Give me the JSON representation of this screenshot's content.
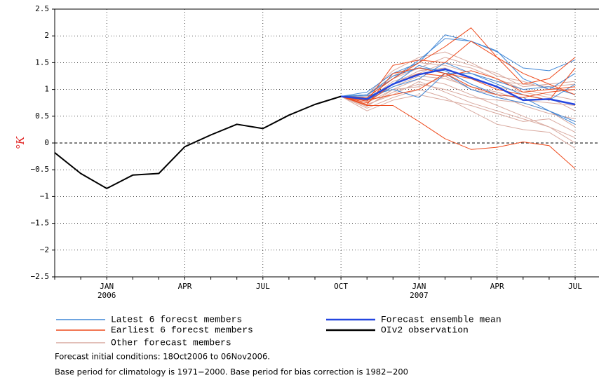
{
  "chart_data": {
    "type": "line",
    "ylabel": "°K",
    "categories": [
      null,
      null,
      "JAN 2006",
      null,
      null,
      "APR",
      null,
      null,
      "JUL",
      null,
      null,
      "OCT",
      null,
      null,
      "JAN 2007",
      null,
      null,
      "APR",
      null,
      null,
      "JUL"
    ],
    "ylim": [
      -2.5,
      2.5
    ],
    "yticks": [
      {
        "value": -2.5,
        "label": "−2.5"
      },
      {
        "value": -2,
        "label": "−2"
      },
      {
        "value": -1.5,
        "label": "−1.5"
      },
      {
        "value": -1,
        "label": "−1"
      },
      {
        "value": -0.5,
        "label": "−0.5"
      },
      0,
      0.5,
      1,
      1.5,
      2,
      2.5
    ],
    "grid": true,
    "series": [
      {
        "name": "Latest 6 forecst members",
        "color": "#3f86d6",
        "members": [
          [
            null,
            null,
            null,
            null,
            null,
            null,
            null,
            null,
            null,
            null,
            null,
            0.87,
            0.95,
            1.3,
            1.5,
            2.02,
            1.9,
            1.7,
            1.4,
            1.35,
            1.55
          ],
          [
            null,
            null,
            null,
            null,
            null,
            null,
            null,
            null,
            null,
            null,
            null,
            0.87,
            0.9,
            1.2,
            1.55,
            1.95,
            1.9,
            1.72,
            1.2,
            1.0,
            1.3
          ],
          [
            null,
            null,
            null,
            null,
            null,
            null,
            null,
            null,
            null,
            null,
            null,
            0.87,
            0.85,
            1.1,
            1.45,
            1.3,
            1.0,
            0.85,
            0.75,
            0.6,
            0.4
          ],
          [
            null,
            null,
            null,
            null,
            null,
            null,
            null,
            null,
            null,
            null,
            null,
            0.87,
            0.8,
            1.05,
            1.2,
            1.5,
            1.3,
            1.1,
            0.9,
            0.8,
            1.1
          ],
          [
            null,
            null,
            null,
            null,
            null,
            null,
            null,
            null,
            null,
            null,
            null,
            0.87,
            0.9,
            1.25,
            1.4,
            1.35,
            1.1,
            0.9,
            0.85,
            0.6,
            0.35
          ],
          [
            null,
            null,
            null,
            null,
            null,
            null,
            null,
            null,
            null,
            null,
            null,
            0.87,
            0.88,
            1.0,
            0.85,
            1.3,
            1.3,
            1.15,
            1.0,
            1.05,
            0.9
          ]
        ]
      },
      {
        "name": "Earliest 6 forecst members",
        "color": "#ee4a1c",
        "members": [
          [
            null,
            null,
            null,
            null,
            null,
            null,
            null,
            null,
            null,
            null,
            null,
            0.87,
            0.78,
            1.45,
            1.55,
            1.5,
            1.9,
            1.6,
            1.1,
            1.2,
            1.6
          ],
          [
            null,
            null,
            null,
            null,
            null,
            null,
            null,
            null,
            null,
            null,
            null,
            0.87,
            0.85,
            1.2,
            1.5,
            1.8,
            2.15,
            1.6,
            1.3,
            1.1,
            0.9
          ],
          [
            null,
            null,
            null,
            null,
            null,
            null,
            null,
            null,
            null,
            null,
            null,
            0.87,
            0.7,
            0.7,
            0.4,
            0.08,
            -0.12,
            -0.08,
            0.02,
            -0.05,
            -0.48
          ],
          [
            null,
            null,
            null,
            null,
            null,
            null,
            null,
            null,
            null,
            null,
            null,
            0.87,
            0.75,
            1.1,
            1.3,
            1.25,
            1.35,
            1.2,
            0.95,
            1.0,
            1.05
          ],
          [
            null,
            null,
            null,
            null,
            null,
            null,
            null,
            null,
            null,
            null,
            null,
            0.87,
            0.8,
            0.9,
            1.0,
            1.3,
            1.05,
            0.9,
            0.85,
            0.95,
            1.0
          ],
          [
            null,
            null,
            null,
            null,
            null,
            null,
            null,
            null,
            null,
            null,
            null,
            0.87,
            0.72,
            1.3,
            1.4,
            1.3,
            1.2,
            1.0,
            0.9,
            0.8,
            1.4
          ]
        ]
      },
      {
        "name": "Other forecast members",
        "color": "#d9aaa0",
        "members": [
          [
            null,
            null,
            null,
            null,
            null,
            null,
            null,
            null,
            null,
            null,
            null,
            0.87,
            0.75,
            1.0,
            1.2,
            1.1,
            0.9,
            0.7,
            0.5,
            0.3,
            0.1
          ],
          [
            null,
            null,
            null,
            null,
            null,
            null,
            null,
            null,
            null,
            null,
            null,
            0.87,
            0.65,
            0.85,
            1.0,
            0.85,
            0.6,
            0.35,
            0.25,
            0.2,
            -0.1
          ],
          [
            null,
            null,
            null,
            null,
            null,
            null,
            null,
            null,
            null,
            null,
            null,
            0.87,
            0.8,
            1.15,
            1.3,
            1.5,
            1.4,
            1.2,
            1.0,
            0.9,
            0.8
          ],
          [
            null,
            null,
            null,
            null,
            null,
            null,
            null,
            null,
            null,
            null,
            null,
            0.87,
            0.7,
            0.95,
            1.1,
            1.0,
            0.85,
            0.8,
            0.75,
            0.6,
            0.3
          ],
          [
            null,
            null,
            null,
            null,
            null,
            null,
            null,
            null,
            null,
            null,
            null,
            0.87,
            0.85,
            1.2,
            1.4,
            1.6,
            1.45,
            1.3,
            1.05,
            1.1,
            1.15
          ],
          [
            null,
            null,
            null,
            null,
            null,
            null,
            null,
            null,
            null,
            null,
            null,
            0.87,
            0.6,
            0.8,
            0.9,
            0.8,
            0.7,
            0.55,
            0.4,
            0.45,
            0.2
          ],
          [
            null,
            null,
            null,
            null,
            null,
            null,
            null,
            null,
            null,
            null,
            null,
            0.87,
            0.78,
            1.05,
            1.25,
            1.2,
            1.05,
            0.95,
            0.8,
            0.75,
            0.7
          ],
          [
            null,
            null,
            null,
            null,
            null,
            null,
            null,
            null,
            null,
            null,
            null,
            0.87,
            0.9,
            1.35,
            1.6,
            1.7,
            1.5,
            1.25,
            1.15,
            1.0,
            1.0
          ],
          [
            null,
            null,
            null,
            null,
            null,
            null,
            null,
            null,
            null,
            null,
            null,
            0.87,
            0.72,
            0.9,
            1.15,
            0.95,
            0.75,
            0.6,
            0.45,
            0.3,
            0.0
          ],
          [
            null,
            null,
            null,
            null,
            null,
            null,
            null,
            null,
            null,
            null,
            null,
            0.87,
            0.82,
            1.1,
            1.35,
            1.4,
            1.2,
            1.05,
            0.95,
            0.85,
            0.6
          ],
          [
            null,
            null,
            null,
            null,
            null,
            null,
            null,
            null,
            null,
            null,
            null,
            0.87,
            0.68,
            1.0,
            1.05,
            1.25,
            1.0,
            0.9,
            0.7,
            0.55,
            0.45
          ],
          [
            null,
            null,
            null,
            null,
            null,
            null,
            null,
            null,
            null,
            null,
            null,
            0.87,
            0.88,
            1.25,
            1.5,
            1.45,
            1.3,
            1.15,
            1.1,
            1.05,
            1.1
          ]
        ]
      },
      {
        "name": "Forecast ensemble mean",
        "color": "#2446e0",
        "values": [
          null,
          null,
          null,
          null,
          null,
          null,
          null,
          null,
          null,
          null,
          null,
          0.87,
          0.82,
          1.1,
          1.28,
          1.38,
          1.22,
          1.05,
          0.8,
          0.82,
          0.72
        ]
      },
      {
        "name": "OIv2 observation",
        "color": "#000000",
        "values": [
          -0.18,
          -0.57,
          -0.85,
          -0.6,
          -0.57,
          -0.07,
          0.15,
          0.35,
          0.27,
          0.52,
          0.72,
          0.87,
          null,
          null,
          null,
          null,
          null,
          null,
          null,
          null,
          null
        ]
      }
    ],
    "notes": [
      "Forecast initial conditions: 18Oct2006 to 06Nov2006.",
      "Base period for climatology is 1971−2000. Base period for bias correction is 1982−200"
    ]
  }
}
